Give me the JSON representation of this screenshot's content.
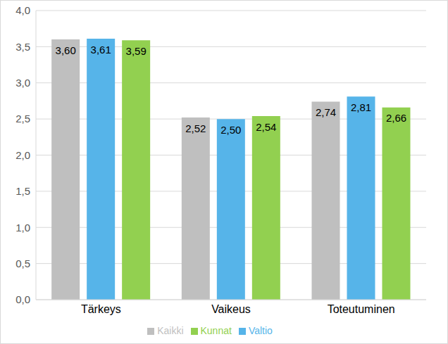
{
  "chart_data": {
    "type": "bar",
    "categories": [
      "Tärkeys",
      "Vaikeus",
      "Toteutuminen"
    ],
    "series": [
      {
        "name": "Kaikki",
        "color": "#bfbfbf",
        "values": [
          3.6,
          2.52,
          2.74
        ],
        "value_labels": [
          "3,60",
          "2,52",
          "2,74"
        ]
      },
      {
        "name": "Valtio",
        "color": "#56b4e9",
        "values": [
          3.61,
          2.5,
          2.81
        ],
        "value_labels": [
          "3,61",
          "2,50",
          "2,81"
        ]
      },
      {
        "name": "Kunnat",
        "color": "#92d050",
        "values": [
          3.59,
          2.54,
          2.66
        ],
        "value_labels": [
          "3,59",
          "2,54",
          "2,66"
        ]
      }
    ],
    "ylim": [
      0,
      4
    ],
    "yticks": [
      {
        "value": 0,
        "label": "0,0"
      },
      {
        "value": 0.5,
        "label": "0,5"
      },
      {
        "value": 1,
        "label": "1,0"
      },
      {
        "value": 1.5,
        "label": "1,5"
      },
      {
        "value": 2,
        "label": "2,0"
      },
      {
        "value": 2.5,
        "label": "2,5"
      },
      {
        "value": 3,
        "label": "3,0"
      },
      {
        "value": 3.5,
        "label": "3,5"
      },
      {
        "value": 4,
        "label": "4,0"
      }
    ],
    "grid": true,
    "legend": "bottom",
    "data_labels": true
  }
}
